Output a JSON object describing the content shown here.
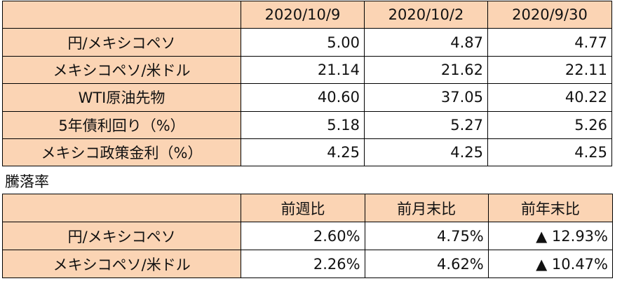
{
  "table1": {
    "headers": [
      "",
      "2020/10/9",
      "2020/10/2",
      "2020/9/30"
    ],
    "rows": [
      {
        "label": "円/メキシコペソ",
        "values": [
          "5.00",
          "4.87",
          "4.77"
        ]
      },
      {
        "label": "メキシコペソ/米ドル",
        "values": [
          "21.14",
          "21.62",
          "22.11"
        ]
      },
      {
        "label": "WTI原油先物",
        "values": [
          "40.60",
          "37.05",
          "40.22"
        ]
      },
      {
        "label": "5年債利回り（%）",
        "values": [
          "5.18",
          "5.27",
          "5.26"
        ]
      },
      {
        "label": "メキシコ政策金利（%）",
        "values": [
          "4.25",
          "4.25",
          "4.25"
        ]
      }
    ]
  },
  "caption": "騰落率",
  "table2": {
    "headers": [
      "",
      "前週比",
      "前月末比",
      "前年末比"
    ],
    "rows": [
      {
        "label": "円/メキシコペソ",
        "values": [
          "2.60%",
          "4.75%",
          "▲ 12.93%"
        ]
      },
      {
        "label": "メキシコペソ/米ドル",
        "values": [
          "2.26%",
          "4.62%",
          "▲ 10.47%"
        ]
      }
    ]
  },
  "colors": {
    "header_fill": "#fbd4b4",
    "border": "#000000"
  }
}
